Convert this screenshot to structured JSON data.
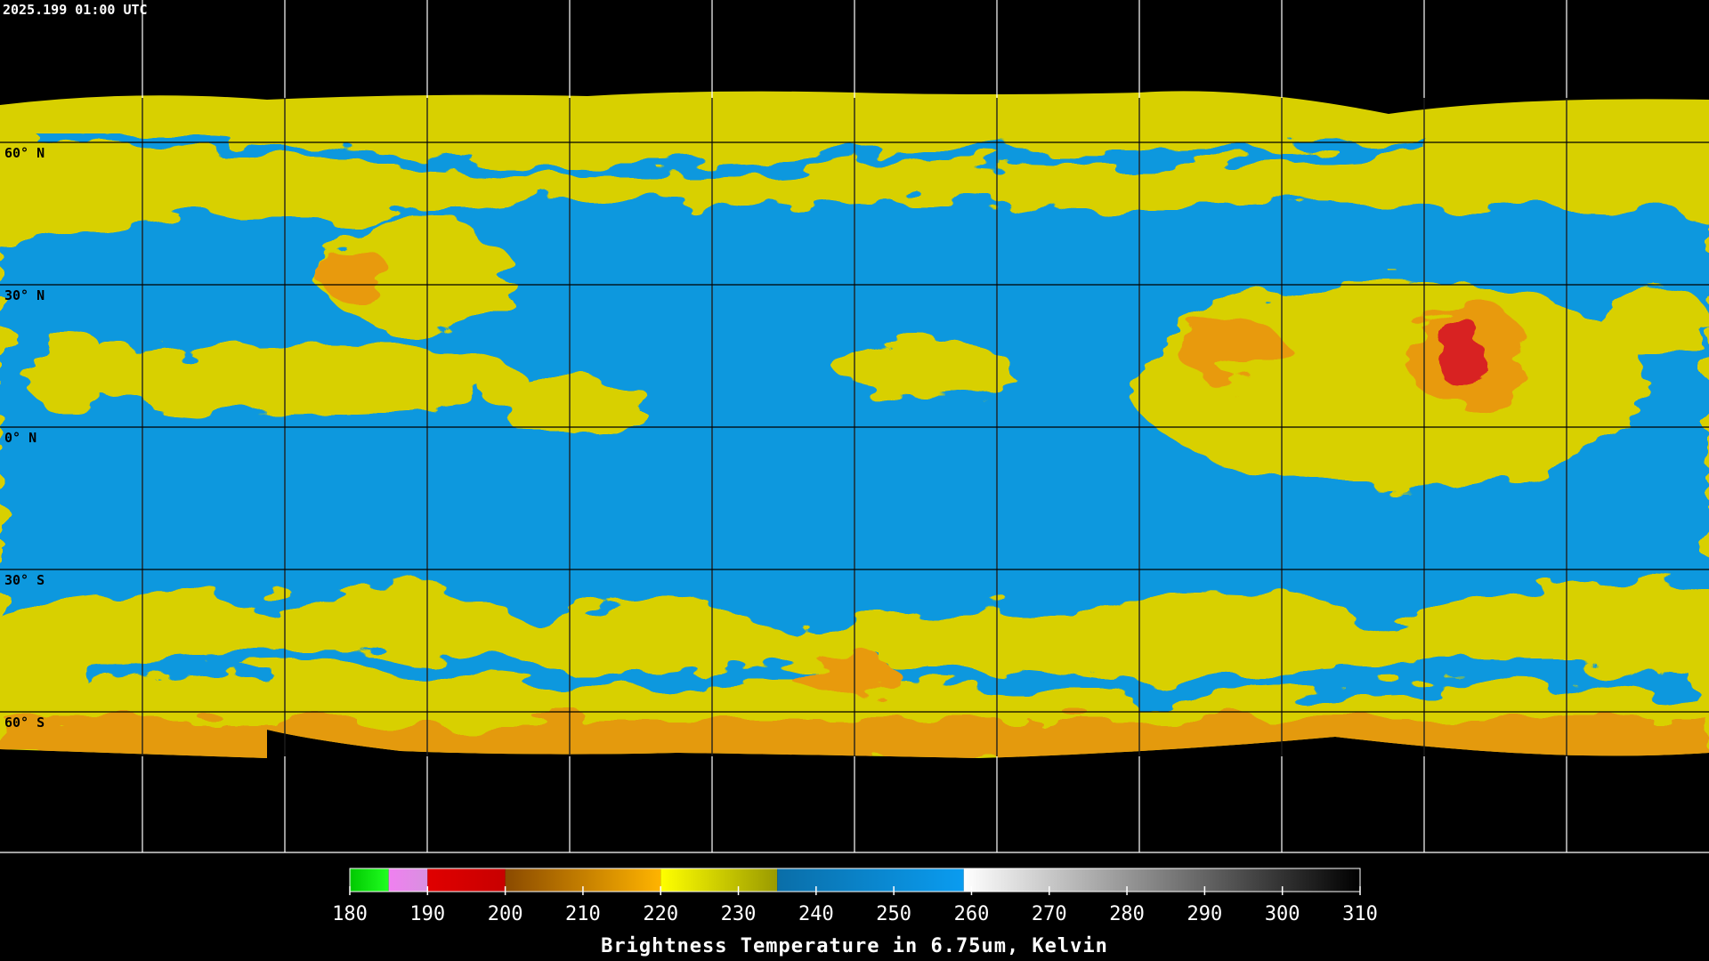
{
  "timestamp": "2025.199 01:00 UTC",
  "latitude_labels": [
    "60° N",
    "30° N",
    "0° N",
    "30° S",
    "60° S"
  ],
  "colorbar": {
    "title": "Brightness Temperature in 6.75um, Kelvin",
    "range": [
      180,
      310
    ],
    "ticks": [
      180,
      190,
      200,
      210,
      220,
      230,
      240,
      250,
      260,
      270,
      280,
      290,
      300,
      310
    ],
    "segments": [
      {
        "from": 180,
        "to": 185,
        "colors": [
          "#00c800",
          "#20ff20"
        ]
      },
      {
        "from": 185,
        "to": 190,
        "colors": [
          "#f080f0",
          "#d890e0"
        ]
      },
      {
        "from": 190,
        "to": 200,
        "colors": [
          "#e00000",
          "#c80000"
        ]
      },
      {
        "from": 200,
        "to": 220,
        "colors": [
          "#8a4a00",
          "#ffb400"
        ]
      },
      {
        "from": 220,
        "to": 235,
        "colors": [
          "#ffff00",
          "#9a9a00"
        ]
      },
      {
        "from": 235,
        "to": 259,
        "colors": [
          "#0a6ea8",
          "#0a9cf0"
        ]
      },
      {
        "from": 259,
        "to": 310,
        "colors": [
          "#ffffff",
          "#000000"
        ]
      }
    ]
  }
}
